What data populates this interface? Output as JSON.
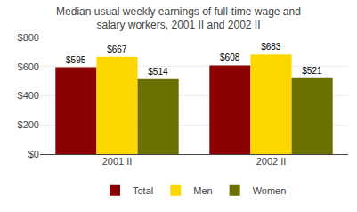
{
  "chart_data": {
    "type": "bar",
    "title": "Median usual weekly earnings of full-time wage and\nsalary workers, 2001 II and 2002 II",
    "categories": [
      "2001 II",
      "2002 II"
    ],
    "series": [
      {
        "name": "Total",
        "color": "#8B0000",
        "values": [
          595,
          608
        ],
        "value_labels": [
          "$595",
          "$608"
        ]
      },
      {
        "name": "Men",
        "color": "#FFD700",
        "values": [
          667,
          683
        ],
        "value_labels": [
          "$667",
          "$683"
        ]
      },
      {
        "name": "Women",
        "color": "#6B7000",
        "values": [
          514,
          521
        ],
        "value_labels": [
          "$514",
          "$521"
        ]
      }
    ],
    "ylim": [
      0,
      800
    ],
    "yticks": [
      {
        "value": 0,
        "label": "$0"
      },
      {
        "value": 200,
        "label": "$200"
      },
      {
        "value": 400,
        "label": "$400"
      },
      {
        "value": 600,
        "label": "$600"
      },
      {
        "value": 800,
        "label": "$800"
      }
    ],
    "grid": true,
    "legend": "bottom",
    "data_labels": true
  }
}
